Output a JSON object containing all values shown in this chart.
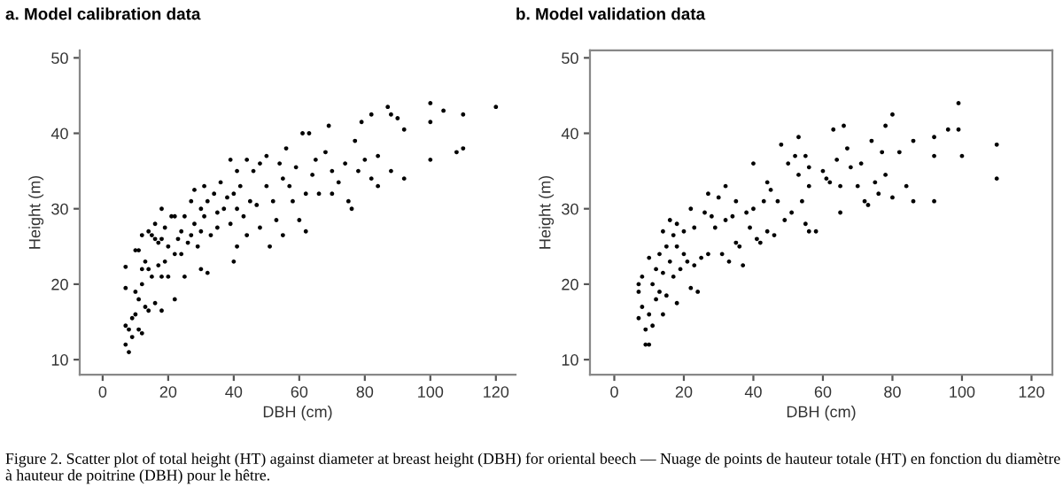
{
  "chart_data": [
    {
      "type": "scatter",
      "title": "a. Model calibration data",
      "xlabel": "DBH (cm)",
      "ylabel": "Height (m)",
      "xlim": [
        -7,
        126
      ],
      "ylim": [
        8,
        51
      ],
      "xticks": [
        0,
        20,
        40,
        60,
        80,
        100,
        120
      ],
      "yticks": [
        10,
        20,
        30,
        40,
        50
      ],
      "grid": false,
      "marker": "circle",
      "series": [
        {
          "color": "#000000",
          "x": [
            7,
            7,
            7,
            7,
            8,
            8,
            9,
            9,
            10,
            10,
            10,
            11,
            11,
            11,
            12,
            12,
            12,
            12,
            13,
            13,
            14,
            14,
            14,
            15,
            15,
            16,
            16,
            16,
            17,
            17,
            18,
            18,
            18,
            18,
            19,
            19,
            20,
            20,
            21,
            22,
            22,
            22,
            23,
            24,
            24,
            25,
            25,
            26,
            27,
            27,
            28,
            28,
            29,
            30,
            30,
            30,
            31,
            31,
            32,
            32,
            33,
            34,
            35,
            35,
            36,
            37,
            38,
            39,
            39,
            40,
            40,
            41,
            41,
            41,
            42,
            43,
            44,
            44,
            45,
            46,
            47,
            48,
            48,
            50,
            50,
            51,
            52,
            53,
            54,
            55,
            55,
            56,
            57,
            58,
            59,
            60,
            61,
            62,
            62,
            63,
            64,
            65,
            66,
            68,
            69,
            70,
            70,
            72,
            74,
            75,
            76,
            77,
            78,
            79,
            80,
            82,
            82,
            84,
            84,
            87,
            88,
            88,
            90,
            92,
            92,
            100,
            100,
            100,
            104,
            108,
            110,
            110,
            120
          ],
          "values": [
            22.3,
            19.5,
            14.5,
            12,
            11,
            14,
            13,
            15.5,
            24.5,
            19,
            16,
            24.5,
            18,
            14,
            26.5,
            22,
            20,
            13.5,
            23,
            17,
            27,
            22,
            16.5,
            26.5,
            21,
            28,
            26,
            17.5,
            25.5,
            22.5,
            30,
            26,
            21,
            16.5,
            27.5,
            23,
            25,
            21,
            29,
            29,
            24,
            18,
            26,
            27,
            24,
            29,
            21,
            25.5,
            31,
            26.5,
            32.5,
            28,
            25,
            30,
            27,
            22,
            33,
            29,
            31,
            21.5,
            26.5,
            32,
            29.5,
            27.5,
            33.5,
            30,
            31.5,
            36.5,
            28,
            32,
            23,
            35,
            30,
            25,
            33,
            29,
            36.5,
            26.5,
            31,
            35,
            30.5,
            36,
            27.5,
            37,
            33,
            25,
            31,
            28.5,
            36,
            34,
            26.5,
            38,
            33,
            31,
            35.5,
            28.5,
            40,
            32,
            27,
            40,
            34.5,
            36.5,
            32,
            37.5,
            41,
            35,
            32,
            33.5,
            36,
            31,
            30,
            39,
            35,
            41.5,
            36.5,
            42.5,
            34,
            37,
            33,
            43.5,
            42.5,
            35,
            42,
            40.5,
            34,
            44,
            41.5,
            36.5,
            43,
            37.5,
            42.5,
            38,
            43.5
          ]
        }
      ]
    },
    {
      "type": "scatter",
      "title": "b. Model validation data",
      "xlabel": "DBH (cm)",
      "ylabel": "Height (m)",
      "xlim": [
        -7,
        126
      ],
      "ylim": [
        8,
        51
      ],
      "xticks": [
        0,
        20,
        40,
        60,
        80,
        100,
        120
      ],
      "yticks": [
        10,
        20,
        30,
        40,
        50
      ],
      "grid": false,
      "marker": "circle",
      "series": [
        {
          "color": "#000000",
          "x": [
            7,
            7,
            7,
            8,
            8,
            9,
            9,
            10,
            10,
            10,
            11,
            11,
            12,
            12,
            13,
            13,
            14,
            14,
            14,
            15,
            15,
            16,
            16,
            17,
            17,
            18,
            18,
            18,
            19,
            20,
            20,
            21,
            22,
            22,
            23,
            23,
            24,
            25,
            26,
            27,
            27,
            28,
            29,
            30,
            31,
            32,
            32,
            33,
            34,
            35,
            35,
            36,
            37,
            38,
            39,
            40,
            40,
            41,
            42,
            43,
            44,
            44,
            45,
            46,
            47,
            48,
            49,
            50,
            51,
            52,
            53,
            53,
            54,
            55,
            55,
            56,
            56,
            56,
            58,
            60,
            61,
            62,
            63,
            64,
            65,
            65,
            66,
            67,
            68,
            70,
            71,
            72,
            73,
            74,
            75,
            76,
            77,
            78,
            78,
            80,
            80,
            82,
            84,
            86,
            86,
            92,
            92,
            92,
            96,
            99,
            99,
            100,
            110,
            110
          ],
          "values": [
            20,
            19,
            15.5,
            17,
            21,
            14,
            12,
            23.5,
            16,
            12,
            20,
            14.5,
            18,
            22,
            24,
            19,
            27,
            21.5,
            16,
            25,
            18.5,
            28.5,
            23,
            26.5,
            21,
            28,
            25,
            17.5,
            22,
            27,
            24,
            23,
            30,
            19.5,
            27.5,
            22.5,
            19,
            23.5,
            29.5,
            32,
            24,
            29,
            27.5,
            31.5,
            24,
            33,
            28.5,
            23,
            29,
            31,
            25.5,
            25,
            22.5,
            29.5,
            27.5,
            36,
            30,
            26,
            25.5,
            31,
            33.5,
            27,
            32.5,
            26.5,
            31,
            38.5,
            28.5,
            36,
            29.5,
            37,
            39.5,
            34.5,
            31,
            37,
            28,
            35.5,
            33,
            27,
            27,
            35,
            34,
            33.5,
            40.5,
            36.5,
            33,
            29.5,
            41,
            38,
            35.5,
            33,
            36,
            31,
            30.5,
            39,
            33.5,
            32,
            37.5,
            41,
            34.5,
            42.5,
            31.5,
            37.5,
            33,
            39,
            31,
            39.5,
            37,
            31,
            40.5,
            44,
            40.5,
            37,
            38.5,
            34
          ]
        }
      ]
    },
    {
      "type": "other",
      "annotations": [
        "Figure 2. Scatter plot of total height (HT) against diameter at breast height (DBH) for oriental beech — Nuage de points de hauteur totale (HT) en fonction du diamètre à hauteur de poitrine (DBH) pour le hêtre."
      ]
    }
  ]
}
